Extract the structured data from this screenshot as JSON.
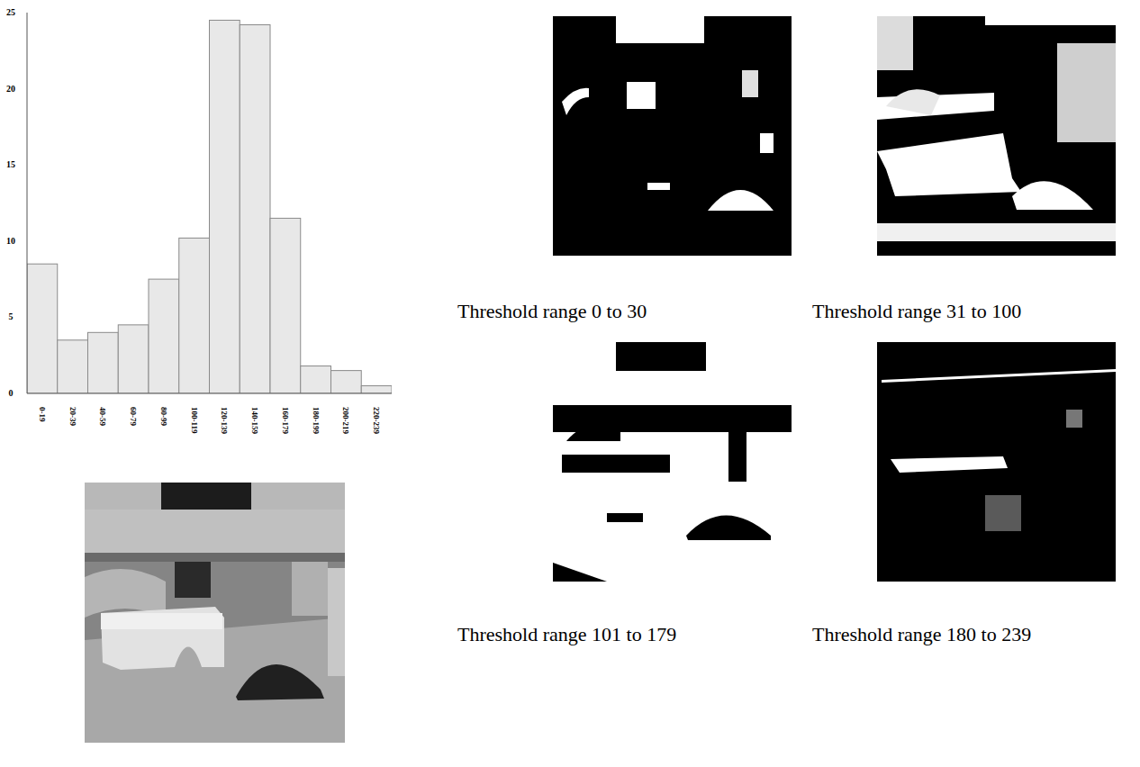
{
  "chart_data": {
    "type": "bar",
    "categories": [
      "0-19",
      "20-39",
      "40-59",
      "60-79",
      "80-99",
      "100-119",
      "120-139",
      "140-159",
      "160-179",
      "180-199",
      "200-219",
      "220-239"
    ],
    "values": [
      8.5,
      3.5,
      4.0,
      4.5,
      7.5,
      10.2,
      24.5,
      24.2,
      11.5,
      1.8,
      1.5,
      0.5
    ],
    "color": "#e8e8e8",
    "ylim": [
      0,
      25
    ],
    "yticks": [
      0,
      5,
      10,
      15,
      20,
      25
    ],
    "grid": false
  },
  "panels": [
    {
      "caption": "Threshold range 0 to 30"
    },
    {
      "caption": "Threshold range 31 to 100"
    },
    {
      "caption": "Threshold range 101 to 179"
    },
    {
      "caption": "Threshold range 180 to 239"
    }
  ]
}
